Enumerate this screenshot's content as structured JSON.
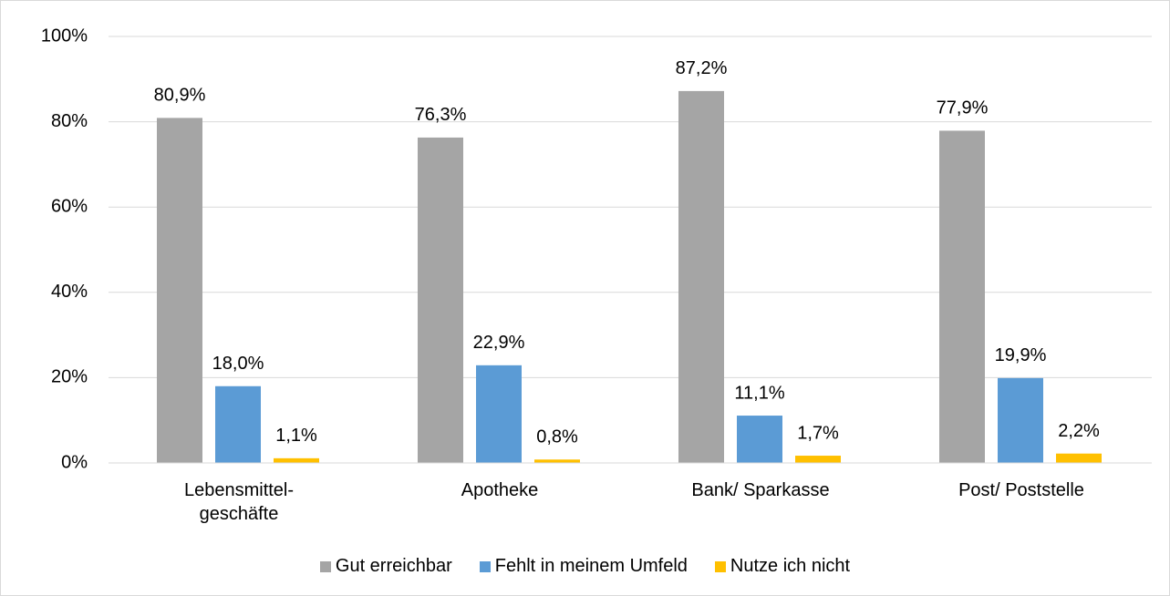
{
  "chart_data": {
    "type": "bar",
    "categories": [
      "Lebensmittel-geschäfte",
      "Apotheke",
      "Bank/ Sparkasse",
      "Post/ Poststelle"
    ],
    "series": [
      {
        "name": "Gut erreichbar",
        "color": "#a5a5a5",
        "values": [
          80.9,
          76.3,
          87.2,
          77.9
        ],
        "value_labels": [
          "80,9%",
          "76,3%",
          "87,2%",
          "77,9%"
        ]
      },
      {
        "name": "Fehlt in meinem Umfeld",
        "color": "#5b9bd5",
        "values": [
          18.0,
          22.9,
          11.1,
          19.9
        ],
        "value_labels": [
          "18,0%",
          "22,9%",
          "11,1%",
          "19,9%"
        ]
      },
      {
        "name": "Nutze ich nicht",
        "color": "#ffc000",
        "values": [
          1.1,
          0.8,
          1.7,
          2.2
        ],
        "value_labels": [
          "1,1%",
          "0,8%",
          "1,7%",
          "2,2%"
        ]
      }
    ],
    "ylim": [
      0,
      100
    ],
    "yticks": [
      {
        "value": 0,
        "label": "0%"
      },
      {
        "value": 20,
        "label": "20%"
      },
      {
        "value": 40,
        "label": "40%"
      },
      {
        "value": 60,
        "label": "60%"
      },
      {
        "value": 80,
        "label": "80%"
      },
      {
        "value": 100,
        "label": "100%"
      }
    ],
    "grid": true,
    "legend": "bottom"
  }
}
